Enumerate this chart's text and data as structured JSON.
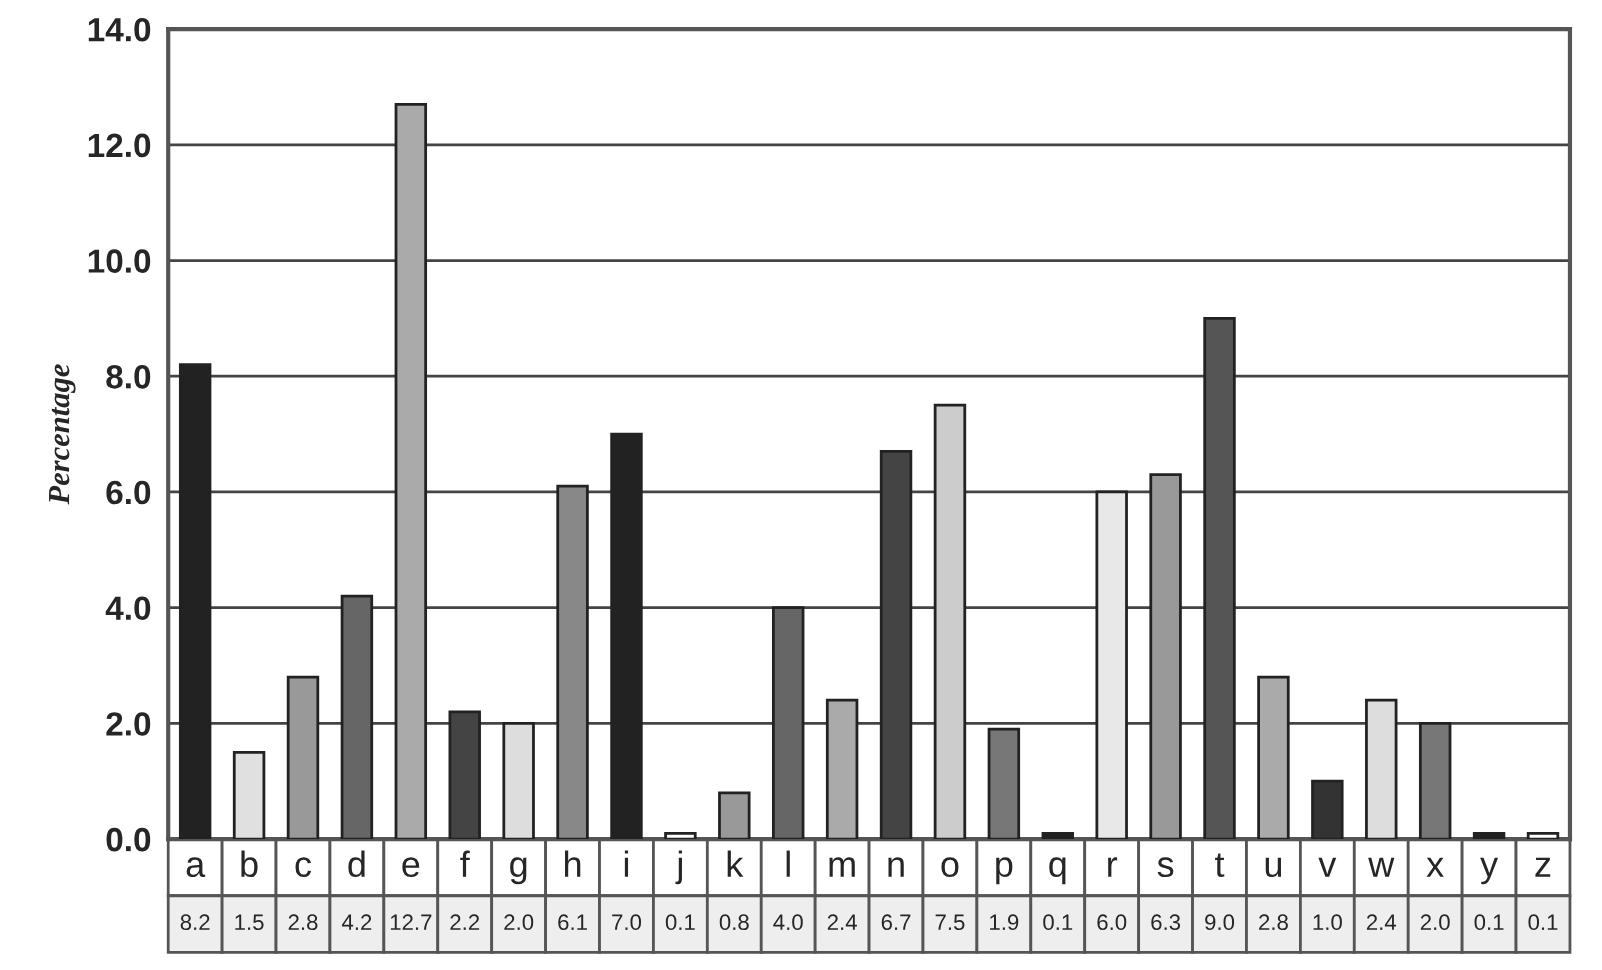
{
  "chart_data": {
    "type": "bar",
    "ylabel": "Percentage",
    "categories": [
      "a",
      "b",
      "c",
      "d",
      "e",
      "f",
      "g",
      "h",
      "i",
      "j",
      "k",
      "l",
      "m",
      "n",
      "o",
      "p",
      "q",
      "r",
      "s",
      "t",
      "u",
      "v",
      "w",
      "x",
      "y",
      "z"
    ],
    "values": [
      8.2,
      1.5,
      2.8,
      4.2,
      12.7,
      2.2,
      2.0,
      6.1,
      7.0,
      0.1,
      0.8,
      4.0,
      2.4,
      6.7,
      7.5,
      1.9,
      0.1,
      6.0,
      6.3,
      9.0,
      2.8,
      1.0,
      2.4,
      2.0,
      0.1,
      0.1
    ],
    "colors": [
      "#222222",
      "#e0e0e0",
      "#999999",
      "#666666",
      "#aaaaaa",
      "#444444",
      "#dddddd",
      "#888888",
      "#222222",
      "#ffffff",
      "#999999",
      "#666666",
      "#aaaaaa",
      "#444444",
      "#cccccc",
      "#777777",
      "#222222",
      "#e8e8e8",
      "#999999",
      "#555555",
      "#aaaaaa",
      "#333333",
      "#dddddd",
      "#777777",
      "#222222",
      "#ffffff"
    ],
    "ylim": [
      0,
      14
    ],
    "yticks": [
      {
        "value": 0,
        "label": "0.0"
      },
      {
        "value": 2,
        "label": "2.0"
      },
      {
        "value": 4,
        "label": "4.0"
      },
      {
        "value": 6,
        "label": "6.0"
      },
      {
        "value": 8,
        "label": "8.0"
      },
      {
        "value": 10,
        "label": "10.0"
      },
      {
        "value": 12,
        "label": "12.0"
      },
      {
        "value": 14,
        "label": "14.0"
      }
    ],
    "value_labels": [
      "8.2",
      "1.5",
      "2.8",
      "4.2",
      "12.7",
      "2.2",
      "2.0",
      "6.1",
      "7.0",
      "0.1",
      "0.8",
      "4.0",
      "2.4",
      "6.7",
      "7.5",
      "1.9",
      "0.1",
      "6.0",
      "6.3",
      "9.0",
      "2.8",
      "1.0",
      "2.4",
      "2.0",
      "0.1",
      "0.1"
    ],
    "grid": "y"
  }
}
